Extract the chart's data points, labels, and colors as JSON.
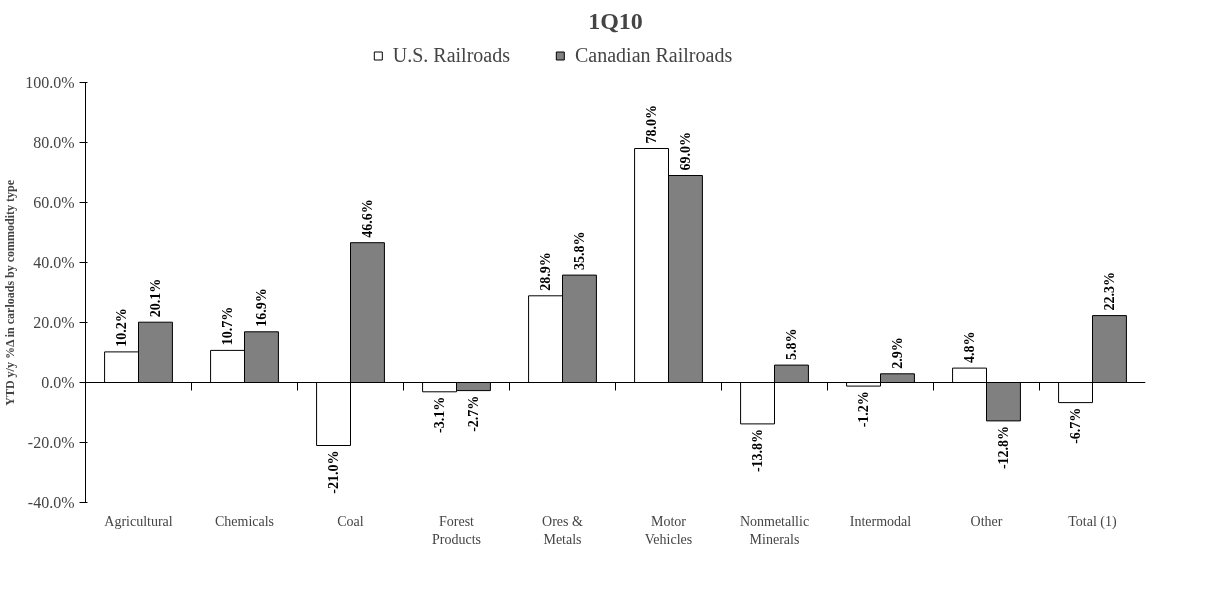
{
  "chart_data": {
    "type": "bar",
    "title": "1Q10",
    "ylabel": "YTD y/y %Δ in carloads by commodity type",
    "categories": [
      "Agricultural",
      "Chemicals",
      "Coal",
      "Forest Products",
      "Ores & Metals",
      "Motor Vehicles",
      "Nonmetallic Minerals",
      "Intermodal",
      "Other",
      "Total (1)"
    ],
    "series": [
      {
        "name": "U.S. Railroads",
        "color": "#ffffff",
        "values": [
          10.2,
          10.7,
          -21.0,
          -3.1,
          28.9,
          78.0,
          -13.8,
          -1.2,
          4.8,
          -6.7
        ],
        "value_labels": [
          "10.2%",
          "10.7%",
          "-21.0%",
          "-3.1%",
          "28.9%",
          "78.0%",
          "-13.8%",
          "-1.2%",
          "4.8%",
          "-6.7%"
        ]
      },
      {
        "name": "Canadian Railroads",
        "color": "#808080",
        "values": [
          20.1,
          16.9,
          46.6,
          -2.7,
          35.8,
          69.0,
          5.8,
          2.9,
          -12.8,
          22.3
        ],
        "value_labels": [
          "20.1%",
          "16.9%",
          "46.6%",
          "-2.7%",
          "35.8%",
          "69.0%",
          "5.8%",
          "2.9%",
          "-12.8%",
          "22.3%"
        ]
      }
    ],
    "ylim": [
      -40,
      100
    ],
    "yticks": [
      {
        "value": -40,
        "label": "-40.0%"
      },
      {
        "value": -20,
        "label": "-20.0%"
      },
      {
        "value": 0,
        "label": "0.0%"
      },
      {
        "value": 20,
        "label": "20.0%"
      },
      {
        "value": 40,
        "label": "40.0%"
      },
      {
        "value": 60,
        "label": "60.0%"
      },
      {
        "value": 80,
        "label": "80.0%"
      },
      {
        "value": 100,
        "label": "100.0%"
      }
    ],
    "legend": "top"
  }
}
